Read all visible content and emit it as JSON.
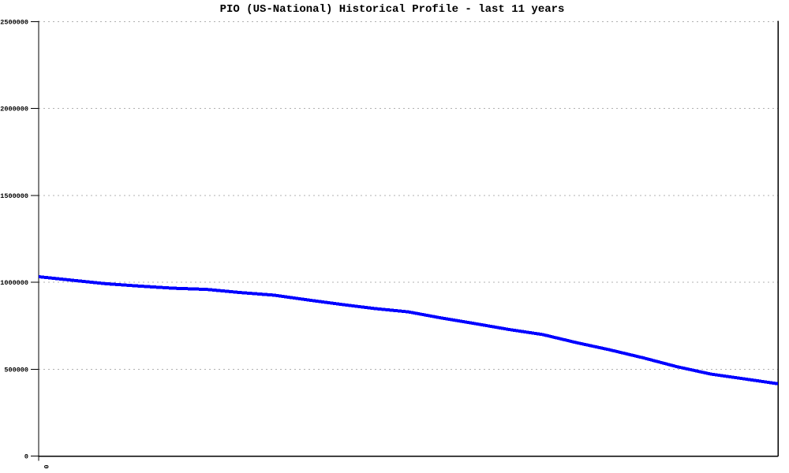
{
  "page": {
    "background_color": "#ffffff"
  },
  "chart_data": {
    "type": "line",
    "title": "PIO (US-National) Historical Profile - last 11 years",
    "x": [
      0,
      0.5,
      1,
      1.5,
      2,
      2.5,
      3,
      3.5,
      4,
      4.5,
      5,
      5.5,
      6,
      6.5,
      7,
      7.5,
      8,
      8.5,
      9,
      9.5,
      10,
      10.5,
      11
    ],
    "values": [
      1032000,
      1012000,
      992000,
      978000,
      966000,
      959000,
      941000,
      926000,
      899000,
      873000,
      849000,
      830000,
      794000,
      762000,
      728000,
      699000,
      653000,
      611000,
      565000,
      514000,
      472000,
      444000,
      416000
    ],
    "xlim": [
      0,
      11
    ],
    "ylim": [
      0,
      2500000
    ],
    "yticks": [
      0,
      500000,
      1000000,
      1500000,
      2000000,
      2500000
    ],
    "ytick_labels": [
      "0",
      "500000",
      "1000000",
      "1500000",
      "2000000",
      "2500000"
    ],
    "xticks": [
      0
    ],
    "xtick_labels": [
      "0"
    ],
    "legend": "none",
    "grid": "horizontal-dashed",
    "line_color": "#0000ff",
    "line_width": 4,
    "grid_color": "#b0b0b0",
    "axis_color": "#000000",
    "text_color": "#000000"
  }
}
